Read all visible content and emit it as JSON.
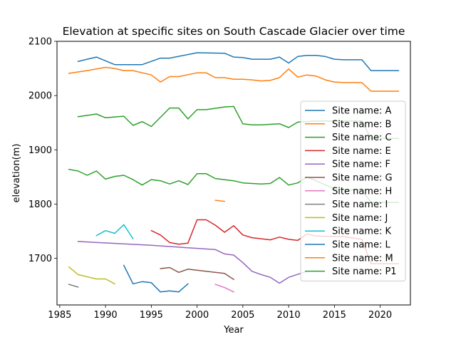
{
  "chart_data": {
    "type": "line",
    "title": "Elevation at specific sites on South Cascade Glacier over time",
    "xlabel": "Year",
    "ylabel": "elevation(m)",
    "xlim": [
      1984.7,
      2023.3
    ],
    "ylim": [
      1614,
      2100
    ],
    "xticks": [
      1985,
      1990,
      1995,
      2000,
      2005,
      2010,
      2015,
      2020
    ],
    "yticks": [
      1700,
      1800,
      1900,
      2000,
      2100
    ],
    "grid": false,
    "legend": "right",
    "series": [
      {
        "name": "Site name: A",
        "color": "#1f77b4",
        "points": [
          [
            1987,
            2063
          ],
          [
            1989,
            2071
          ],
          [
            1991,
            2057
          ],
          [
            1994,
            2057
          ],
          [
            1996,
            2069
          ],
          [
            1997,
            2069
          ],
          [
            2000,
            2079
          ],
          [
            2003,
            2078
          ],
          [
            2004,
            2071
          ],
          [
            2005,
            2070
          ],
          [
            2006,
            2067
          ],
          [
            2008,
            2067
          ],
          [
            2009,
            2071
          ],
          [
            2010,
            2060
          ],
          [
            2011,
            2072
          ],
          [
            2012,
            2074
          ],
          [
            2013,
            2074
          ],
          [
            2014,
            2072
          ],
          [
            2015,
            2067
          ],
          [
            2016,
            2066
          ],
          [
            2018,
            2066
          ],
          [
            2019,
            2046
          ],
          [
            2022,
            2046
          ]
        ]
      },
      {
        "name": "Site name: B",
        "color": "#ff7f0e",
        "points": [
          [
            1986,
            2041
          ],
          [
            1988,
            2046
          ],
          [
            1990,
            2052
          ],
          [
            1991,
            2050
          ],
          [
            1992,
            2046
          ],
          [
            1993,
            2046
          ],
          [
            1995,
            2038
          ],
          [
            1996,
            2025
          ],
          [
            1997,
            2035
          ],
          [
            1998,
            2035
          ],
          [
            2000,
            2042
          ],
          [
            2001,
            2042
          ],
          [
            2002,
            2033
          ],
          [
            2003,
            2033
          ],
          [
            2004,
            2030
          ],
          [
            2005,
            2030
          ],
          [
            2006,
            2029
          ],
          [
            2007,
            2027
          ],
          [
            2008,
            2028
          ],
          [
            2009,
            2033
          ],
          [
            2010,
            2049
          ],
          [
            2011,
            2034
          ],
          [
            2012,
            2038
          ],
          [
            2013,
            2036
          ],
          [
            2014,
            2029
          ],
          [
            2015,
            2025
          ],
          [
            2016,
            2024
          ],
          [
            2018,
            2024
          ],
          [
            2019,
            2008
          ],
          [
            2022,
            2008
          ]
        ]
      },
      {
        "name": "Site name: C",
        "color": "#2ca02c",
        "points": [
          [
            1987,
            1961
          ],
          [
            1989,
            1966
          ],
          [
            1990,
            1959
          ],
          [
            1992,
            1962
          ],
          [
            1993,
            1945
          ],
          [
            1994,
            1952
          ],
          [
            1995,
            1943
          ],
          [
            1997,
            1977
          ],
          [
            1998,
            1977
          ],
          [
            1999,
            1957
          ],
          [
            2000,
            1974
          ],
          [
            2001,
            1974
          ],
          [
            2003,
            1979
          ],
          [
            2004,
            1980
          ],
          [
            2005,
            1948
          ],
          [
            2006,
            1946
          ],
          [
            2007,
            1946
          ],
          [
            2008,
            1947
          ],
          [
            2009,
            1948
          ],
          [
            2010,
            1941
          ],
          [
            2011,
            1951
          ],
          [
            2013,
            1953
          ],
          [
            2018,
            1953
          ],
          [
            2019,
            1921
          ],
          [
            2022,
            1921
          ]
        ]
      },
      {
        "name": "Site name: E",
        "color": "#d62728",
        "points": [
          [
            1995,
            1751
          ],
          [
            1996,
            1743
          ],
          [
            1997,
            1729
          ],
          [
            1998,
            1726
          ],
          [
            1999,
            1728
          ],
          [
            2000,
            1771
          ],
          [
            2001,
            1771
          ],
          [
            2002,
            1761
          ],
          [
            2003,
            1748
          ],
          [
            2004,
            1760
          ],
          [
            2005,
            1743
          ],
          [
            2006,
            1738
          ],
          [
            2008,
            1734
          ],
          [
            2009,
            1739
          ],
          [
            2010,
            1735
          ],
          [
            2011,
            1733
          ],
          [
            2012,
            1745
          ],
          [
            2013,
            1741
          ],
          [
            2016,
            1740
          ],
          [
            2018,
            1735
          ],
          [
            2019,
            1690
          ],
          [
            2022,
            1690
          ]
        ]
      },
      {
        "name": "Site name: F",
        "color": "#9467bd",
        "points": [
          [
            1987,
            1731
          ],
          [
            1995,
            1724
          ],
          [
            2002,
            1716
          ],
          [
            2003,
            1708
          ],
          [
            2004,
            1706
          ],
          [
            2005,
            1692
          ],
          [
            2006,
            1676
          ],
          [
            2007,
            1670
          ],
          [
            2008,
            1665
          ],
          [
            2009,
            1654
          ],
          [
            2010,
            1665
          ],
          [
            2012,
            1676
          ]
        ]
      },
      {
        "name": "Site name: G",
        "color": "#8c564b",
        "points": [
          [
            1996,
            1681
          ],
          [
            1997,
            1683
          ],
          [
            1998,
            1674
          ],
          [
            1999,
            1680
          ],
          [
            2003,
            1672
          ],
          [
            2004,
            1661
          ]
        ]
      },
      {
        "name": "Site name: H",
        "color": "#e377c2",
        "points": [
          [
            2002,
            1652
          ],
          [
            2003,
            1646
          ],
          [
            2004,
            1638
          ]
        ]
      },
      {
        "name": "Site name: I",
        "color": "#7f7f7f",
        "points": [
          [
            1986,
            1652
          ],
          [
            1987,
            1647
          ]
        ]
      },
      {
        "name": "Site name: J",
        "color": "#bcbd22",
        "points": [
          [
            1986,
            1684
          ],
          [
            1987,
            1670
          ],
          [
            1989,
            1662
          ],
          [
            1990,
            1662
          ],
          [
            1991,
            1653
          ]
        ]
      },
      {
        "name": "Site name: K",
        "color": "#17becf",
        "points": [
          [
            1989,
            1742
          ],
          [
            1990,
            1751
          ],
          [
            1991,
            1746
          ],
          [
            1992,
            1762
          ],
          [
            1993,
            1736
          ]
        ]
      },
      {
        "name": "Site name: L",
        "color": "#1f77b4",
        "points": [
          [
            1992,
            1687
          ],
          [
            1993,
            1653
          ],
          [
            1994,
            1657
          ],
          [
            1995,
            1655
          ],
          [
            1996,
            1638
          ],
          [
            1997,
            1640
          ],
          [
            1998,
            1638
          ],
          [
            1999,
            1653
          ]
        ]
      },
      {
        "name": "Site name: M",
        "color": "#ff7f0e",
        "points": [
          [
            2002,
            1807
          ],
          [
            2003,
            1805
          ]
        ]
      },
      {
        "name": "Site name: P1",
        "color": "#2ca02c",
        "points": [
          [
            1986,
            1864
          ],
          [
            1987,
            1861
          ],
          [
            1988,
            1853
          ],
          [
            1989,
            1861
          ],
          [
            1990,
            1846
          ],
          [
            1991,
            1851
          ],
          [
            1992,
            1853
          ],
          [
            1993,
            1845
          ],
          [
            1994,
            1835
          ],
          [
            1995,
            1845
          ],
          [
            1996,
            1843
          ],
          [
            1997,
            1837
          ],
          [
            1998,
            1843
          ],
          [
            1999,
            1836
          ],
          [
            2000,
            1856
          ],
          [
            2001,
            1856
          ],
          [
            2002,
            1847
          ],
          [
            2004,
            1843
          ],
          [
            2005,
            1839
          ],
          [
            2007,
            1837
          ],
          [
            2008,
            1838
          ],
          [
            2009,
            1849
          ],
          [
            2010,
            1835
          ],
          [
            2011,
            1839
          ],
          [
            2012,
            1850
          ],
          [
            2013,
            1843
          ],
          [
            2015,
            1828
          ],
          [
            2016,
            1826
          ],
          [
            2018,
            1826
          ],
          [
            2019,
            1803
          ],
          [
            2022,
            1803
          ]
        ]
      }
    ]
  }
}
